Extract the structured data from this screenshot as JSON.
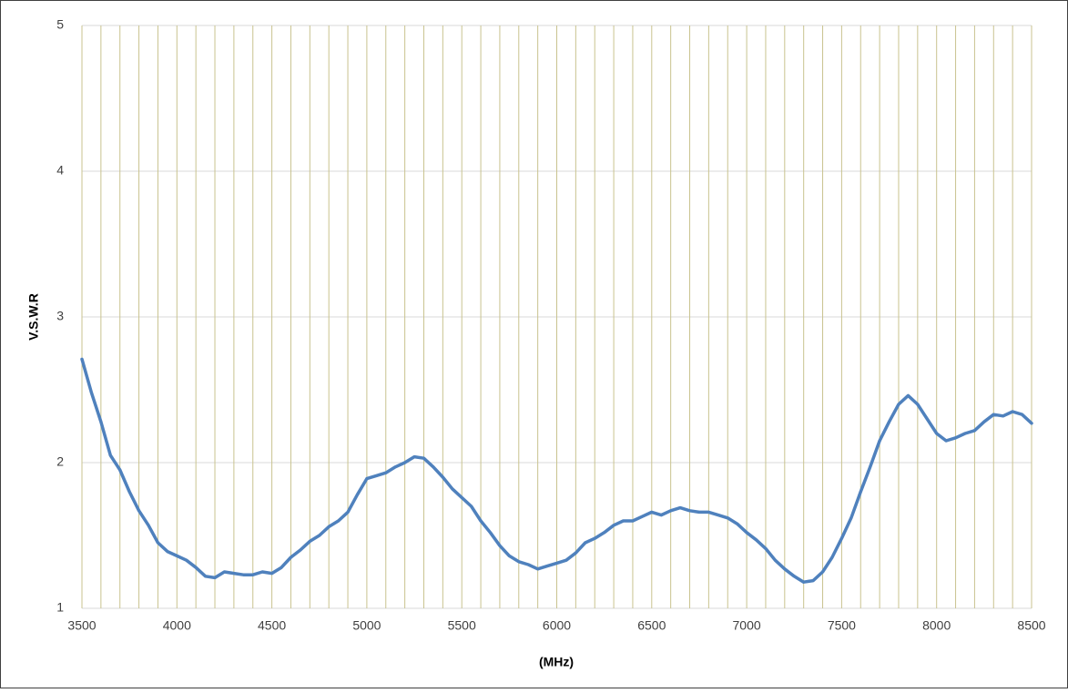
{
  "chart_data": {
    "type": "line",
    "xlabel": "(MHz)",
    "ylabel": "V.S.W.R",
    "color": "#4f81bd",
    "xlim": [
      3500,
      8500
    ],
    "ylim": [
      1,
      5
    ],
    "xticks": [
      3500,
      4000,
      4500,
      5000,
      5500,
      6000,
      6500,
      7000,
      7500,
      8000,
      8500
    ],
    "yticks": [
      1,
      2,
      3,
      4,
      5
    ],
    "xgrid": [
      3500,
      3600,
      3700,
      3800,
      3900,
      4000,
      4100,
      4200,
      4300,
      4400,
      4500,
      4600,
      4700,
      4800,
      4900,
      5000,
      5100,
      5200,
      5300,
      5400,
      5500,
      5600,
      5700,
      5800,
      5900,
      6000,
      6100,
      6200,
      6300,
      6400,
      6500,
      6600,
      6700,
      6800,
      6900,
      7000,
      7100,
      7200,
      7300,
      7400,
      7500,
      7600,
      7700,
      7800,
      7900,
      8000,
      8100,
      8200,
      8300,
      8400,
      8500
    ],
    "grid": true,
    "x": [
      3500,
      3550,
      3600,
      3650,
      3700,
      3750,
      3800,
      3850,
      3900,
      3950,
      4000,
      4050,
      4100,
      4150,
      4200,
      4250,
      4300,
      4350,
      4400,
      4450,
      4500,
      4550,
      4600,
      4650,
      4700,
      4750,
      4800,
      4850,
      4900,
      4950,
      5000,
      5050,
      5100,
      5150,
      5200,
      5250,
      5300,
      5350,
      5400,
      5450,
      5500,
      5550,
      5600,
      5650,
      5700,
      5750,
      5800,
      5850,
      5900,
      5950,
      6000,
      6050,
      6100,
      6150,
      6200,
      6250,
      6300,
      6350,
      6400,
      6450,
      6500,
      6550,
      6600,
      6650,
      6700,
      6750,
      6800,
      6850,
      6900,
      6950,
      7000,
      7050,
      7100,
      7150,
      7200,
      7250,
      7300,
      7350,
      7400,
      7450,
      7500,
      7550,
      7600,
      7650,
      7700,
      7750,
      7800,
      7850,
      7900,
      7950,
      8000,
      8050,
      8100,
      8150,
      8200,
      8250,
      8300,
      8350,
      8400,
      8450,
      8500
    ],
    "values": [
      2.71,
      2.48,
      2.28,
      2.05,
      1.95,
      1.8,
      1.67,
      1.57,
      1.45,
      1.39,
      1.36,
      1.33,
      1.28,
      1.22,
      1.21,
      1.25,
      1.24,
      1.23,
      1.23,
      1.25,
      1.24,
      1.28,
      1.35,
      1.4,
      1.46,
      1.5,
      1.56,
      1.6,
      1.66,
      1.78,
      1.89,
      1.91,
      1.93,
      1.97,
      2.0,
      2.04,
      2.03,
      1.97,
      1.9,
      1.82,
      1.76,
      1.7,
      1.6,
      1.52,
      1.43,
      1.36,
      1.32,
      1.3,
      1.27,
      1.29,
      1.31,
      1.33,
      1.38,
      1.45,
      1.48,
      1.52,
      1.57,
      1.6,
      1.6,
      1.63,
      1.66,
      1.64,
      1.67,
      1.69,
      1.67,
      1.66,
      1.66,
      1.64,
      1.62,
      1.58,
      1.52,
      1.47,
      1.41,
      1.33,
      1.27,
      1.22,
      1.18,
      1.19,
      1.25,
      1.35,
      1.48,
      1.62,
      1.8,
      1.97,
      2.15,
      2.28,
      2.4,
      2.46,
      2.4,
      2.3,
      2.2,
      2.15,
      2.17,
      2.2,
      2.22,
      2.28,
      2.33,
      2.32,
      2.35,
      2.33,
      2.27
    ]
  }
}
